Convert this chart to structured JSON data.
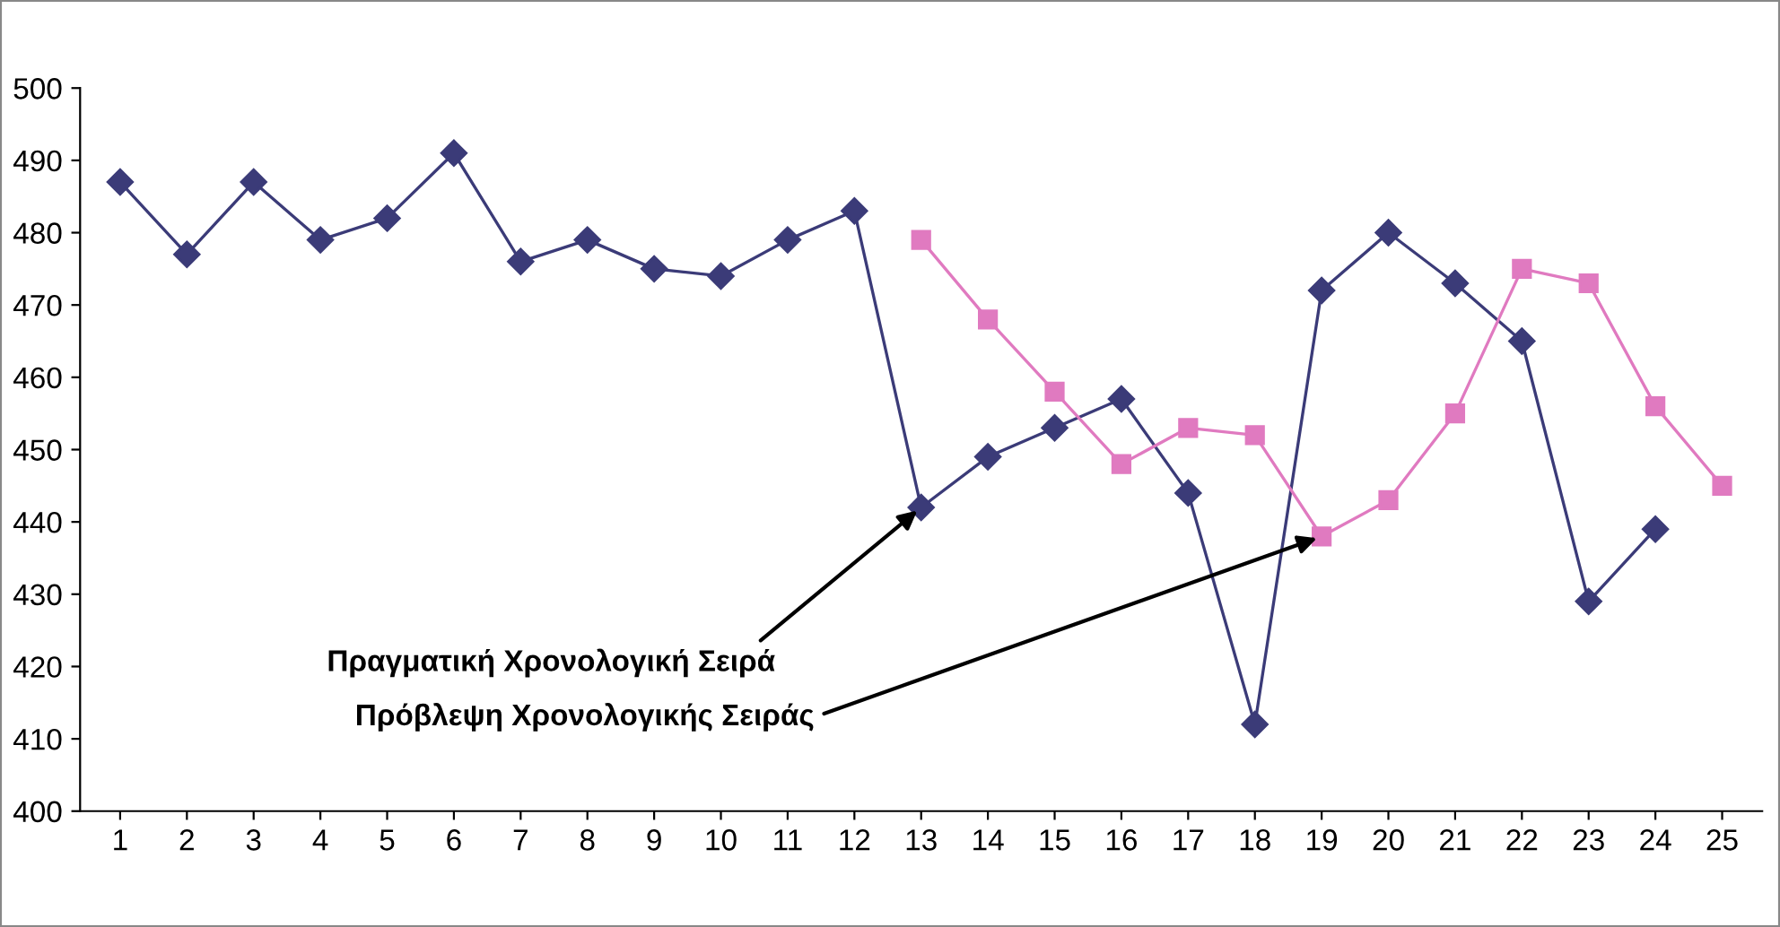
{
  "chart_data": {
    "type": "line",
    "categories": [
      "1",
      "2",
      "3",
      "4",
      "5",
      "6",
      "7",
      "8",
      "9",
      "10",
      "11",
      "12",
      "13",
      "14",
      "15",
      "16",
      "17",
      "18",
      "19",
      "20",
      "21",
      "22",
      "23",
      "24",
      "25"
    ],
    "series": [
      {
        "color": "#3b3b78",
        "marker": "diamond",
        "values": [
          487,
          477,
          487,
          479,
          482,
          491,
          476,
          479,
          475,
          474,
          479,
          483,
          442,
          449,
          453,
          457,
          444,
          412,
          472,
          480,
          473,
          465,
          429,
          439,
          null
        ]
      },
      {
        "color": "#e07ac0",
        "marker": "square",
        "values": [
          null,
          null,
          null,
          null,
          null,
          null,
          null,
          null,
          null,
          null,
          null,
          null,
          479,
          468,
          458,
          448,
          453,
          452,
          438,
          443,
          455,
          475,
          473,
          456,
          445
        ]
      }
    ],
    "ylim": [
      400,
      500
    ],
    "yticks": [
      400,
      410,
      420,
      430,
      440,
      450,
      460,
      470,
      480,
      490,
      500
    ],
    "grid": false,
    "legend": false,
    "annotations": [
      {
        "text": "Πραγματική Χρονολογική Σειρά",
        "x": "13",
        "y": 442
      },
      {
        "text": "Πρόβλεψη Χρονολογικής Σειράς",
        "x": "19",
        "y": 438
      }
    ]
  }
}
